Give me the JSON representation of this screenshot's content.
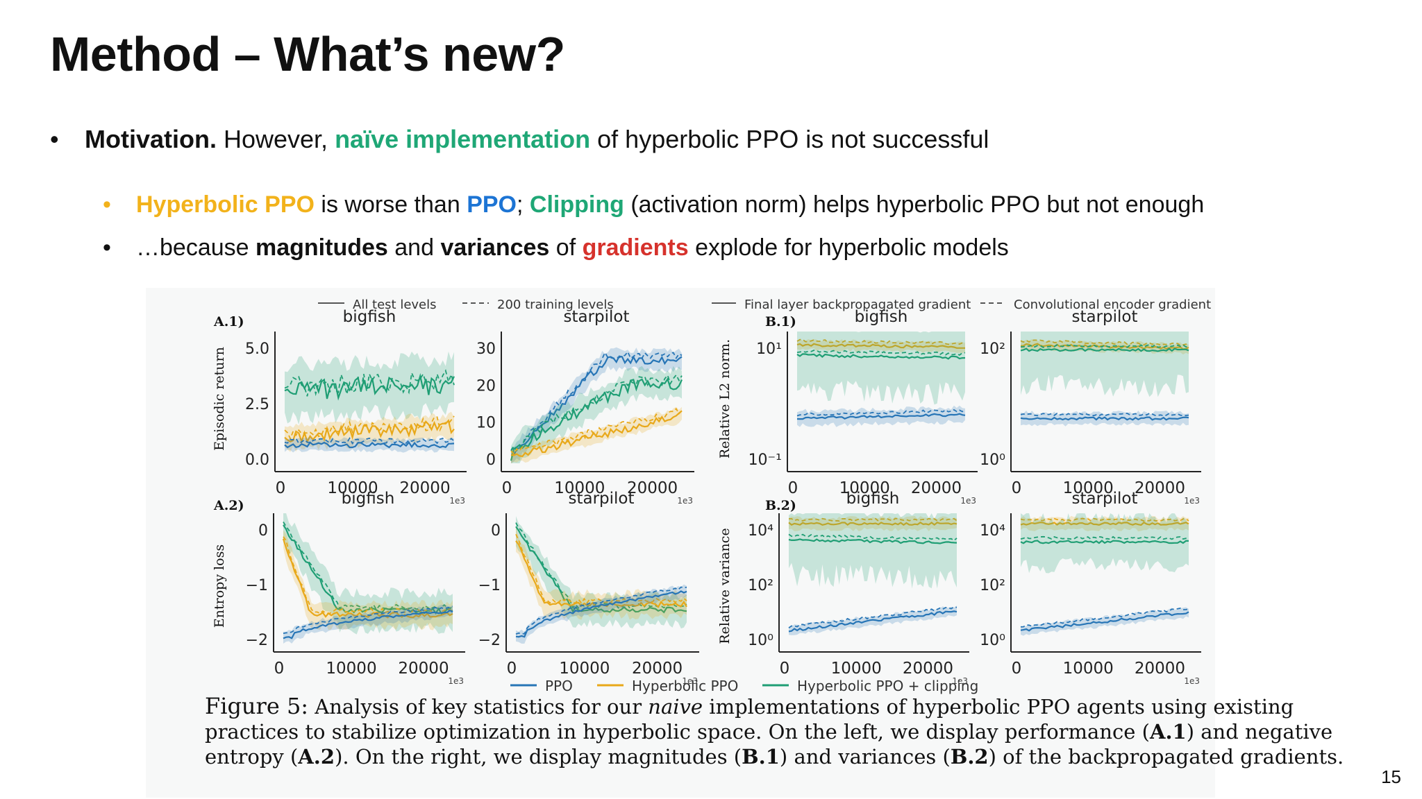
{
  "title": "Method – What’s new?",
  "bullets": {
    "b1": {
      "lead": "Motivation.",
      "pre": " However, ",
      "green": "naïve implementation",
      "post": " of hyperbolic PPO is not successful"
    },
    "b2": {
      "yellow": "Hyperbolic PPO",
      "a": " is worse than ",
      "blue": "PPO",
      "b": "; ",
      "green": "Clipping",
      "c": " (activation norm) helps hyperbolic PPO but not enough"
    },
    "b3": {
      "a": "…because ",
      "bold1": "magnitudes",
      "b": " and ",
      "bold2": "variances",
      "c": " of ",
      "red": "gradients",
      "d": " explode for hyperbolic models"
    }
  },
  "bullet_marker": "•",
  "figure": {
    "legend_top_left": [
      "All test levels",
      "200 training levels"
    ],
    "legend_top_right": [
      "Final layer backpropagated gradient",
      "Convolutional encoder gradient"
    ],
    "legend_bottom": [
      "PPO",
      "Hyperbolic PPO",
      "Hyperbolic PPO + clipping"
    ],
    "panel_labels": [
      "A.1)",
      "A.2)",
      "B.1)",
      "B.2)"
    ],
    "ylabels": [
      "Episodic return",
      "Entropy loss",
      "Relative L2 norm.",
      "Relative variance"
    ],
    "subplot_titles": [
      "bigfish",
      "starpilot",
      "bigfish",
      "starpilot",
      "bigfish",
      "starpilot",
      "bigfish",
      "starpilot"
    ],
    "x_ticks": [
      "0",
      "10000",
      "20000"
    ],
    "x_multiplier": "1e3",
    "y_ticks": {
      "a1_bigfish": [
        "5.0",
        "2.5",
        "0.0"
      ],
      "a1_starpilot": [
        "30",
        "20",
        "10",
        "0"
      ],
      "a2_bigfish": [
        "0",
        "−1",
        "−2"
      ],
      "a2_starpilot": [
        "0",
        "−1",
        "−2"
      ],
      "b1_bigfish": [
        "10¹",
        "10⁻¹"
      ],
      "b1_starpilot": [
        "10²",
        "10⁰"
      ],
      "b2_bigfish": [
        "10⁴",
        "10²",
        "10⁰"
      ],
      "b2_starpilot": [
        "10⁴",
        "10²",
        "10⁰"
      ]
    },
    "colors": {
      "ppo": "#2775b6",
      "hyp": "#e8a819",
      "clip": "#1f9e74"
    },
    "caption": {
      "l1a": "Figure 5:",
      "l1b": " Analysis of key statistics for our ",
      "l1c": "naive",
      "l1d": " implementations of hyperbolic PPO agents using existing",
      "l2a": "practices to stabilize optimization in hyperbolic space. On the left, we display performance (",
      "l2b": "A.1",
      "l2c": ") and negative",
      "l3a": "entropy (",
      "l3b": "A.2",
      "l3c": "). On the right, we display magnitudes (",
      "l3d": "B.1",
      "l3e": ") and variances (",
      "l3f": "B.2",
      "l3g": ") of the backpropagated gradients."
    }
  },
  "page_number": "15"
}
